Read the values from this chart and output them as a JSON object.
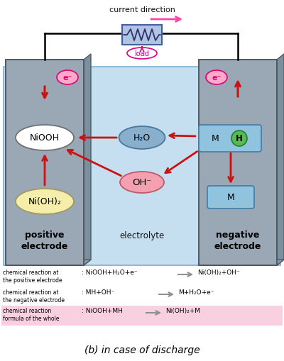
{
  "bg_color": "#ffffff",
  "electrolyte_color": "#c5dff0",
  "electrode_color": "#9aa8b5",
  "electrode_side_color": "#7a90a0",
  "electrode_bottom_color": "#8898a8",
  "wire_color": "#000000",
  "load_box_color": "#afc4e0",
  "load_box_edge": "#4060a0",
  "zigzag_color": "#303070",
  "load_label": "load",
  "load_label_color": "#dd0088",
  "current_label": "current direction",
  "current_arrow_color": "#ff44aa",
  "electron_fill": "#ffaac8",
  "electron_edge": "#dd0077",
  "electron_label": "e⁻",
  "arrow_red": "#cc1111",
  "niooh_fill": "#ffffff",
  "niooh_edge": "#707070",
  "niooh_label": "NiOOH",
  "nioh2_fill": "#f5eeaa",
  "nioh2_edge": "#a09860",
  "nioh2_label": "Ni(OH)₂",
  "h2o_fill": "#88b0cc",
  "h2o_edge": "#4878a0",
  "h2o_label": "H₂O",
  "oh_fill": "#f5a0b0",
  "oh_edge": "#c05868",
  "oh_label": "OH⁻",
  "mh_fill": "#90c4de",
  "mh_edge": "#4880a8",
  "m_label": "M",
  "h_fill": "#55bb55",
  "h_edge": "#2a7a2a",
  "h_label": "H",
  "positive_label": "positive\nelectrode",
  "electrolyte_label": "electrolyte",
  "negative_label": "negative\nelectrode",
  "rxn1_left": "chemical reaction at\nthe positive electrode",
  "rxn1_colon": ": NiOOH+H₂O+e⁻",
  "rxn1_right": "Ni(OH)₂+OH⁻",
  "rxn2_left": "chemical reaction at\nthe negative electrode",
  "rxn2_colon": ": MH+OH⁻",
  "rxn2_right": "M+H₂O+e⁻",
  "rxn3_left": "chemical reaction\nformula of the whole",
  "rxn3_colon": ": NiOOH+MH",
  "rxn3_right": "Ni(OH)₂+M",
  "rxn3_bg": "#f8d0e0",
  "arrow_gray": "#909090",
  "title": "(b) in case of discharge",
  "label_color": "#111111",
  "bold_label_color": "#000000"
}
